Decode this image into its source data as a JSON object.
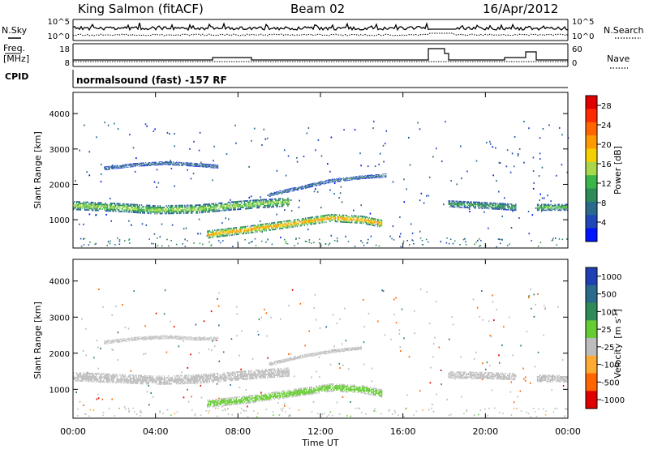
{
  "header": {
    "station": "King Salmon (fitACF)",
    "beam": "Beam 02",
    "date": "16/Apr/2012"
  },
  "left_labels": {
    "nsky": "N.Sky",
    "freq_line1": "Freq.",
    "freq_line2": "[MHz]",
    "cpid": "CPID"
  },
  "right_labels": {
    "nsearch": "N.Search",
    "nave": "Nave"
  },
  "noise_panel": {
    "ticks_left": [
      "10^5",
      "10^0"
    ],
    "ticks_right": [
      "10^5",
      "10^0"
    ]
  },
  "freq_panel": {
    "ticks_left": [
      "18",
      "8"
    ],
    "ticks_right": [
      "60",
      "0"
    ]
  },
  "cpid_text": "normalsound (fast) -157 RF",
  "chart_data": [
    {
      "type": "heatmap",
      "name": "power",
      "ylabel": "Slant Range [km]",
      "y_ticks": [
        "1000",
        "2000",
        "3000",
        "4000"
      ],
      "ylim": [
        200,
        4600
      ],
      "xlim": [
        0,
        24
      ],
      "colorbar_label": "Power [dB]",
      "colorbar_ticks": [
        "4",
        "8",
        "12",
        "16",
        "20",
        "24",
        "28"
      ],
      "colorbar_colors": [
        "#0014ff",
        "#2147b8",
        "#2a6a8c",
        "#2e8b57",
        "#39b54a",
        "#a8d84a",
        "#f5d000",
        "#ff9900",
        "#ff6600",
        "#ff2a00",
        "#e00000"
      ],
      "bands": [
        {
          "x": [
            0.0,
            2.0,
            4.0,
            6.0,
            7.5,
            9.0,
            10.5
          ],
          "y": [
            1400,
            1350,
            1280,
            1300,
            1380,
            1450,
            1500
          ],
          "width": 260,
          "value": 16
        },
        {
          "x": [
            6.5,
            8.5,
            10.5,
            12.5,
            14.0,
            15.0
          ],
          "y": [
            580,
            720,
            880,
            1050,
            1000,
            880
          ],
          "width": 230,
          "value": 22
        },
        {
          "x": [
            9.5,
            11.0,
            12.5,
            14.0,
            15.2
          ],
          "y": [
            1700,
            1900,
            2100,
            2200,
            2250
          ],
          "width": 110,
          "value": 8
        },
        {
          "x": [
            1.5,
            3.0,
            4.5,
            6.0,
            7.0
          ],
          "y": [
            2450,
            2550,
            2600,
            2550,
            2500
          ],
          "width": 110,
          "value": 8
        },
        {
          "x": [
            18.2,
            20.0,
            21.5
          ],
          "y": [
            1450,
            1400,
            1350
          ],
          "width": 200,
          "value": 12
        },
        {
          "x": [
            22.5,
            24.0
          ],
          "y": [
            1350,
            1350
          ],
          "width": 200,
          "value": 14
        }
      ]
    },
    {
      "type": "heatmap",
      "name": "velocity",
      "ylabel": "Slant Range [km]",
      "y_ticks": [
        "1000",
        "2000",
        "3000",
        "4000"
      ],
      "ylim": [
        200,
        4600
      ],
      "xlim": [
        0,
        24
      ],
      "colorbar_label": "Velocity",
      "colorbar_units_base": "[m s",
      "colorbar_units_exp": "-1",
      "colorbar_units_end": "]",
      "colorbar_ticks": [
        "1000",
        "500",
        "100",
        "25",
        "-25",
        "-100",
        "-500",
        "-1000"
      ],
      "colorbar_colors": [
        "#1f3fb4",
        "#2a6a8c",
        "#2e8b57",
        "#66cc33",
        "#bdbdbd",
        "#ffaa33",
        "#ff6600",
        "#e00000"
      ],
      "bands": [
        {
          "x": [
            0.0,
            2.0,
            4.0,
            6.0,
            7.5,
            9.0,
            10.5
          ],
          "y": [
            1350,
            1300,
            1250,
            1280,
            1350,
            1420,
            1480
          ],
          "width": 260,
          "value": 0
        },
        {
          "x": [
            6.5,
            8.5,
            10.5,
            12.5,
            14.0,
            15.0
          ],
          "y": [
            600,
            720,
            880,
            1050,
            1000,
            880
          ],
          "width": 230,
          "value": 60
        },
        {
          "x": [
            9.5,
            11.0,
            12.5,
            14.0
          ],
          "y": [
            1700,
            1900,
            2050,
            2150
          ],
          "width": 100,
          "value": 0
        },
        {
          "x": [
            1.5,
            3.0,
            4.5,
            6.0,
            7.0
          ],
          "y": [
            2300,
            2400,
            2450,
            2400,
            2400
          ],
          "width": 110,
          "value": 0
        },
        {
          "x": [
            18.2,
            20.0,
            21.5
          ],
          "y": [
            1400,
            1380,
            1350
          ],
          "width": 200,
          "value": 0
        },
        {
          "x": [
            22.5,
            24.0
          ],
          "y": [
            1300,
            1300
          ],
          "width": 200,
          "value": 0
        }
      ]
    }
  ],
  "x_axis": {
    "ticks": [
      "00:00",
      "04:00",
      "08:00",
      "12:00",
      "16:00",
      "20:00",
      "00:00"
    ],
    "label": "Time UT"
  }
}
